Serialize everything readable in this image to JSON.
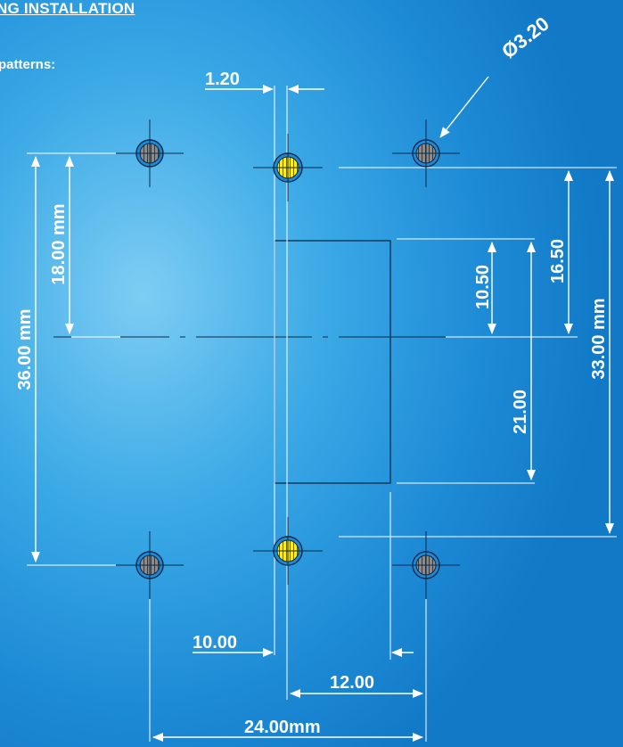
{
  "heading": "NG INSTALLATION",
  "subheading": "patterns:",
  "dimensions": {
    "hole_diameter": "Ø3.20",
    "pin_offset": "1.20",
    "left_half_height": "18.00 mm",
    "left_total_height": "36.00 mm",
    "rect_half_height": "10.50",
    "rect_height": "21.00",
    "right_half_height": "16.50",
    "right_total_height": "33.00 mm",
    "pin_spacing_bottom": "10.00",
    "half_width": "12.00",
    "total_width": "24.00mm"
  },
  "colors": {
    "background": "#1d8ad6",
    "line": "#ffffff",
    "outline": "#0a2a4a",
    "hole_gray": "#8a8a8a",
    "pin_yellow": "#ffec1a"
  }
}
